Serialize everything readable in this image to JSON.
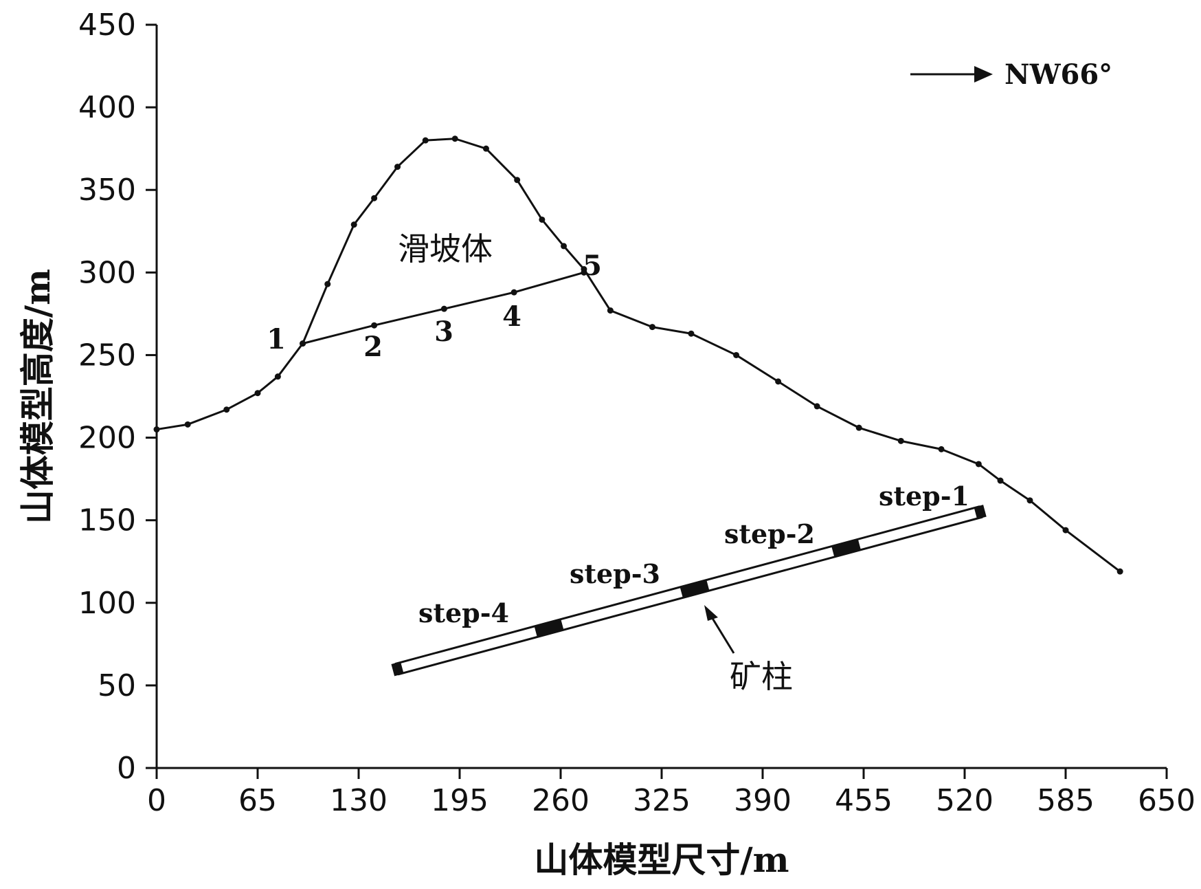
{
  "chart_data": {
    "type": "line",
    "xlabel": "山体模型尺寸/m",
    "ylabel": "山体模型高度/m",
    "xlim": [
      0,
      650
    ],
    "ylim": [
      0,
      450
    ],
    "xticks": [
      0,
      65,
      130,
      195,
      260,
      325,
      390,
      455,
      520,
      585,
      650
    ],
    "yticks": [
      0,
      50,
      100,
      150,
      200,
      250,
      300,
      350,
      400,
      450
    ],
    "grid": false,
    "series": [
      {
        "x": [
          0,
          20,
          45,
          65,
          78,
          94,
          110,
          127,
          140,
          155,
          173,
          192,
          212,
          232,
          248,
          262,
          275,
          292,
          319,
          344,
          373,
          400,
          425,
          452,
          479,
          505,
          529,
          543,
          562,
          585,
          620
        ],
        "y": [
          205,
          208,
          217,
          227,
          237,
          257,
          293,
          329,
          345,
          364,
          380,
          381,
          375,
          356,
          332,
          316,
          302,
          277,
          267,
          263,
          250,
          234,
          219,
          206,
          198,
          193,
          184,
          174,
          162,
          144,
          119
        ]
      },
      {
        "x": [
          94,
          140,
          185,
          230,
          275
        ],
        "y": [
          257,
          268,
          278,
          288,
          300
        ]
      }
    ],
    "point_labels": [
      "1",
      "2",
      "3",
      "4",
      "5"
    ],
    "annotations": {
      "landslide": "滑坡体",
      "pillar": "矿柱",
      "direction": "NW66°",
      "steps": [
        "step-1",
        "step-2",
        "step-3",
        "step-4"
      ]
    },
    "pillar": {
      "x": [
        155,
        530
      ],
      "y": [
        60,
        155
      ]
    }
  }
}
